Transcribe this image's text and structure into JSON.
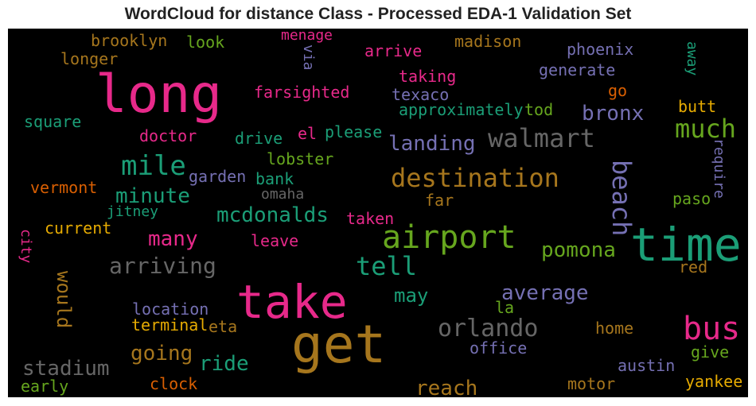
{
  "title": "WordCloud for distance Class - Processed EDA-1 Validation Set",
  "chart_data": {
    "type": "wordcloud",
    "title": "WordCloud for distance Class - Processed EDA-1 Validation Set",
    "background": "#000000",
    "palette": [
      "#e7298a",
      "#1b9e77",
      "#66a61e",
      "#a6761d",
      "#7570b3",
      "#666666",
      "#d95f02",
      "#e6ab02"
    ],
    "words": [
      {
        "text": "long",
        "weight": 1.0,
        "color": "#e7298a",
        "vertical": false
      },
      {
        "text": "get",
        "weight": 1.0,
        "color": "#a6761d",
        "vertical": false
      },
      {
        "text": "take",
        "weight": 0.95,
        "color": "#e7298a",
        "vertical": false
      },
      {
        "text": "time",
        "weight": 0.95,
        "color": "#1b9e77",
        "vertical": false
      },
      {
        "text": "airport",
        "weight": 0.75,
        "color": "#66a61e",
        "vertical": false
      },
      {
        "text": "bus",
        "weight": 0.72,
        "color": "#e7298a",
        "vertical": false
      },
      {
        "text": "walmart",
        "weight": 0.6,
        "color": "#666666",
        "vertical": false
      },
      {
        "text": "destination",
        "weight": 0.6,
        "color": "#a6761d",
        "vertical": false
      },
      {
        "text": "beach",
        "weight": 0.6,
        "color": "#7570b3",
        "vertical": true
      },
      {
        "text": "orlando",
        "weight": 0.58,
        "color": "#666666",
        "vertical": false
      },
      {
        "text": "much",
        "weight": 0.55,
        "color": "#66a61e",
        "vertical": false
      },
      {
        "text": "mile",
        "weight": 0.55,
        "color": "#1b9e77",
        "vertical": false
      },
      {
        "text": "tell",
        "weight": 0.55,
        "color": "#1b9e77",
        "vertical": false
      },
      {
        "text": "arriving",
        "weight": 0.5,
        "color": "#666666",
        "vertical": false
      },
      {
        "text": "landing",
        "weight": 0.48,
        "color": "#7570b3",
        "vertical": false
      },
      {
        "text": "stadium",
        "weight": 0.46,
        "color": "#666666",
        "vertical": false
      },
      {
        "text": "mcdonalds",
        "weight": 0.45,
        "color": "#1b9e77",
        "vertical": false
      },
      {
        "text": "bronx",
        "weight": 0.45,
        "color": "#7570b3",
        "vertical": false
      },
      {
        "text": "minute",
        "weight": 0.45,
        "color": "#1b9e77",
        "vertical": false
      },
      {
        "text": "average",
        "weight": 0.45,
        "color": "#7570b3",
        "vertical": false
      },
      {
        "text": "pomona",
        "weight": 0.45,
        "color": "#66a61e",
        "vertical": false
      },
      {
        "text": "going",
        "weight": 0.45,
        "color": "#a6761d",
        "vertical": false
      },
      {
        "text": "ride",
        "weight": 0.45,
        "color": "#1b9e77",
        "vertical": false
      },
      {
        "text": "reach",
        "weight": 0.45,
        "color": "#a6761d",
        "vertical": false
      },
      {
        "text": "would",
        "weight": 0.45,
        "color": "#a6761d",
        "vertical": true
      },
      {
        "text": "many",
        "weight": 0.43,
        "color": "#e7298a",
        "vertical": false
      },
      {
        "text": "may",
        "weight": 0.43,
        "color": "#1b9e77",
        "vertical": false
      },
      {
        "text": "farsighted",
        "weight": 0.3,
        "color": "#e7298a",
        "vertical": false
      },
      {
        "text": "taking",
        "weight": 0.3,
        "color": "#e7298a",
        "vertical": false
      },
      {
        "text": "approximately",
        "weight": 0.3,
        "color": "#1b9e77",
        "vertical": false
      },
      {
        "text": "brooklyn",
        "weight": 0.3,
        "color": "#a6761d",
        "vertical": false
      },
      {
        "text": "look",
        "weight": 0.3,
        "color": "#66a61e",
        "vertical": false
      },
      {
        "text": "menage",
        "weight": 0.28,
        "color": "#e7298a",
        "vertical": false
      },
      {
        "text": "madison",
        "weight": 0.3,
        "color": "#a6761d",
        "vertical": false
      },
      {
        "text": "phoenix",
        "weight": 0.3,
        "color": "#7570b3",
        "vertical": false
      },
      {
        "text": "longer",
        "weight": 0.3,
        "color": "#a6761d",
        "vertical": false
      },
      {
        "text": "via",
        "weight": 0.28,
        "color": "#7570b3",
        "vertical": true
      },
      {
        "text": "arrive",
        "weight": 0.3,
        "color": "#e7298a",
        "vertical": false
      },
      {
        "text": "generate",
        "weight": 0.3,
        "color": "#7570b3",
        "vertical": false
      },
      {
        "text": "away",
        "weight": 0.28,
        "color": "#1b9e77",
        "vertical": true
      },
      {
        "text": "go",
        "weight": 0.3,
        "color": "#d95f02",
        "vertical": false
      },
      {
        "text": "texaco",
        "weight": 0.3,
        "color": "#7570b3",
        "vertical": false
      },
      {
        "text": "tod",
        "weight": 0.3,
        "color": "#66a61e",
        "vertical": false
      },
      {
        "text": "butt",
        "weight": 0.3,
        "color": "#e6ab02",
        "vertical": false
      },
      {
        "text": "square",
        "weight": 0.3,
        "color": "#1b9e77",
        "vertical": false
      },
      {
        "text": "doctor",
        "weight": 0.3,
        "color": "#e7298a",
        "vertical": false
      },
      {
        "text": "drive",
        "weight": 0.3,
        "color": "#1b9e77",
        "vertical": false
      },
      {
        "text": "el",
        "weight": 0.3,
        "color": "#e7298a",
        "vertical": false
      },
      {
        "text": "please",
        "weight": 0.3,
        "color": "#1b9e77",
        "vertical": false
      },
      {
        "text": "require",
        "weight": 0.28,
        "color": "#7570b3",
        "vertical": true
      },
      {
        "text": "lobster",
        "weight": 0.3,
        "color": "#66a61e",
        "vertical": false
      },
      {
        "text": "garden",
        "weight": 0.3,
        "color": "#7570b3",
        "vertical": false
      },
      {
        "text": "bank",
        "weight": 0.3,
        "color": "#1b9e77",
        "vertical": false
      },
      {
        "text": "vermont",
        "weight": 0.3,
        "color": "#d95f02",
        "vertical": false
      },
      {
        "text": "omaha",
        "weight": 0.28,
        "color": "#666666",
        "vertical": false
      },
      {
        "text": "far",
        "weight": 0.3,
        "color": "#a6761d",
        "vertical": false
      },
      {
        "text": "paso",
        "weight": 0.3,
        "color": "#66a61e",
        "vertical": false
      },
      {
        "text": "jitney",
        "weight": 0.3,
        "color": "#1b9e77",
        "vertical": false
      },
      {
        "text": "taken",
        "weight": 0.3,
        "color": "#e7298a",
        "vertical": false
      },
      {
        "text": "current",
        "weight": 0.3,
        "color": "#e6ab02",
        "vertical": false
      },
      {
        "text": "city",
        "weight": 0.28,
        "color": "#e7298a",
        "vertical": true
      },
      {
        "text": "leave",
        "weight": 0.3,
        "color": "#e7298a",
        "vertical": false
      },
      {
        "text": "red",
        "weight": 0.3,
        "color": "#a6761d",
        "vertical": false
      },
      {
        "text": "location",
        "weight": 0.3,
        "color": "#7570b3",
        "vertical": false
      },
      {
        "text": "la",
        "weight": 0.3,
        "color": "#66a61e",
        "vertical": false
      },
      {
        "text": "terminal",
        "weight": 0.3,
        "color": "#e6ab02",
        "vertical": false
      },
      {
        "text": "eta",
        "weight": 0.3,
        "color": "#a6761d",
        "vertical": false
      },
      {
        "text": "home",
        "weight": 0.3,
        "color": "#a6761d",
        "vertical": false
      },
      {
        "text": "office",
        "weight": 0.3,
        "color": "#7570b3",
        "vertical": false
      },
      {
        "text": "give",
        "weight": 0.3,
        "color": "#66a61e",
        "vertical": false
      },
      {
        "text": "austin",
        "weight": 0.3,
        "color": "#7570b3",
        "vertical": false
      },
      {
        "text": "clock",
        "weight": 0.3,
        "color": "#d95f02",
        "vertical": false
      },
      {
        "text": "early",
        "weight": 0.3,
        "color": "#66a61e",
        "vertical": false
      },
      {
        "text": "motor",
        "weight": 0.3,
        "color": "#a6761d",
        "vertical": false
      },
      {
        "text": "yankee",
        "weight": 0.3,
        "color": "#e6ab02",
        "vertical": false
      }
    ]
  }
}
